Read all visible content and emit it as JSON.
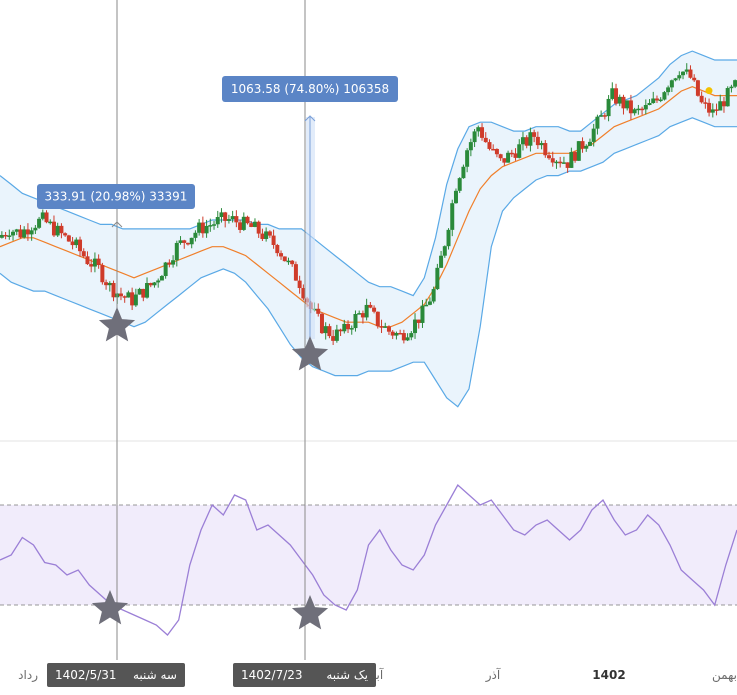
{
  "colors": {
    "up": "#2a8a3a",
    "down": "#cf3b2a",
    "band_line": "#5aa9e6",
    "band_fill": "#eaf4fc",
    "ma_line": "#f07f2a",
    "rsi_line": "#9b7fd6",
    "rsi_band_fill": "#f1ecfb",
    "callout_bg": "#5b85c6",
    "marker_label_bg": "#555555",
    "star": "#6f6f7a",
    "crosshair": "#8a8a8a",
    "measure_fill": "#cfe0f7",
    "measure_line": "#7a9fd8",
    "pane_divider": "#e3e3e3",
    "yellow_dot": "#f2c200"
  },
  "callouts": [
    {
      "label": "333.91 (20.98%) 33391"
    },
    {
      "label": "1063.58 (74.80%) 106358"
    }
  ],
  "time_markers": [
    {
      "date": "1402/5/31",
      "day": "سه شنبه"
    },
    {
      "date": "1402/7/23",
      "day": "یک شنبه"
    }
  ],
  "x_axis": {
    "labels": [
      {
        "text": "رداد",
        "bold": false
      },
      {
        "text": "آبا",
        "bold": false
      },
      {
        "text": "آذر",
        "bold": false
      },
      {
        "text": "1402",
        "bold": true
      },
      {
        "text": "بهمن",
        "bold": false
      }
    ]
  },
  "chart_data": [
    {
      "type": "line",
      "name": "price",
      "description_types": [
        "candlestick",
        "bollinger_bands",
        "moving_average"
      ],
      "x_start": 0,
      "x_end": 737,
      "close": [
        6.6,
        6.8,
        6.7,
        6.9,
        7.0,
        6.8,
        6.6,
        6.4,
        6.1,
        5.9,
        5.5,
        5.3,
        5.2,
        5.4,
        5.6,
        6.0,
        6.4,
        6.6,
        6.8,
        6.9,
        7.0,
        7.0,
        6.9,
        6.8,
        6.6,
        6.4,
        6.0,
        5.6,
        5.0,
        4.6,
        4.4,
        4.5,
        4.8,
        5.0,
        4.7,
        4.5,
        4.4,
        4.6,
        4.9,
        5.4,
        6.5,
        7.8,
        8.6,
        9.1,
        8.6,
        8.3,
        8.5,
        8.7,
        8.9,
        8.6,
        8.4,
        8.3,
        8.6,
        8.9,
        9.3,
        9.8,
        9.6,
        9.4,
        9.5,
        9.7,
        10.1,
        10.4,
        10.2,
        9.6,
        9.4,
        9.7,
        10.0
      ],
      "ma": [
        6.4,
        6.5,
        6.6,
        6.6,
        6.5,
        6.4,
        6.3,
        6.2,
        6.1,
        6.0,
        5.9,
        5.8,
        5.7,
        5.8,
        5.9,
        6.0,
        6.1,
        6.2,
        6.3,
        6.4,
        6.4,
        6.3,
        6.2,
        6.0,
        5.8,
        5.6,
        5.4,
        5.2,
        5.0,
        4.9,
        4.8,
        4.7,
        4.7,
        4.7,
        4.6,
        4.6,
        4.7,
        4.9,
        5.1,
        5.5,
        6.0,
        6.6,
        7.2,
        7.7,
        8.0,
        8.2,
        8.3,
        8.4,
        8.5,
        8.5,
        8.5,
        8.5,
        8.6,
        8.7,
        8.9,
        9.1,
        9.2,
        9.3,
        9.4,
        9.5,
        9.7,
        9.9,
        10.0,
        9.9,
        9.8,
        9.8,
        9.8
      ],
      "upper_band": [
        8.0,
        7.8,
        7.6,
        7.5,
        7.4,
        7.3,
        7.2,
        7.1,
        7.0,
        6.9,
        6.9,
        6.8,
        6.8,
        6.8,
        6.8,
        6.8,
        6.8,
        6.8,
        6.9,
        7.0,
        7.0,
        7.0,
        7.0,
        6.9,
        6.9,
        6.8,
        6.8,
        6.8,
        6.6,
        6.4,
        6.2,
        6.0,
        5.8,
        5.6,
        5.5,
        5.5,
        5.4,
        5.3,
        5.7,
        6.6,
        7.8,
        8.6,
        9.1,
        9.2,
        9.2,
        9.1,
        9.0,
        9.0,
        9.1,
        9.1,
        9.1,
        9.0,
        9.0,
        9.2,
        9.4,
        9.6,
        9.7,
        9.8,
        10.0,
        10.2,
        10.5,
        10.7,
        10.8,
        10.7,
        10.6,
        10.6,
        10.6
      ],
      "lower_band": [
        5.8,
        5.6,
        5.5,
        5.4,
        5.4,
        5.3,
        5.2,
        5.1,
        5.0,
        4.9,
        4.8,
        4.7,
        4.6,
        4.7,
        4.9,
        5.1,
        5.3,
        5.5,
        5.7,
        5.8,
        5.9,
        5.8,
        5.6,
        5.3,
        5.0,
        4.6,
        4.2,
        3.9,
        3.7,
        3.6,
        3.5,
        3.5,
        3.5,
        3.6,
        3.6,
        3.6,
        3.7,
        3.8,
        3.8,
        3.4,
        3.0,
        2.8,
        3.2,
        4.6,
        6.4,
        7.2,
        7.5,
        7.7,
        7.9,
        8.0,
        8.0,
        8.1,
        8.1,
        8.2,
        8.3,
        8.5,
        8.6,
        8.7,
        8.8,
        8.9,
        9.1,
        9.2,
        9.3,
        9.2,
        9.1,
        9.1,
        9.1
      ],
      "y_range": [
        2.5,
        11.5
      ]
    },
    {
      "type": "line",
      "name": "rsi",
      "x_start": 0,
      "x_end": 737,
      "values": [
        48,
        50,
        57,
        54,
        47,
        46,
        42,
        44,
        38,
        34,
        30,
        28,
        26,
        24,
        22,
        18,
        24,
        46,
        60,
        70,
        66,
        74,
        72,
        60,
        62,
        58,
        54,
        48,
        42,
        34,
        30,
        28,
        36,
        54,
        60,
        52,
        46,
        44,
        50,
        62,
        70,
        78,
        74,
        70,
        72,
        66,
        60,
        58,
        62,
        64,
        60,
        56,
        60,
        68,
        72,
        64,
        58,
        60,
        66,
        62,
        54,
        44,
        40,
        36,
        30,
        46,
        60
      ],
      "upper_level": 70,
      "lower_level": 30,
      "y_range": [
        10,
        90
      ]
    }
  ]
}
